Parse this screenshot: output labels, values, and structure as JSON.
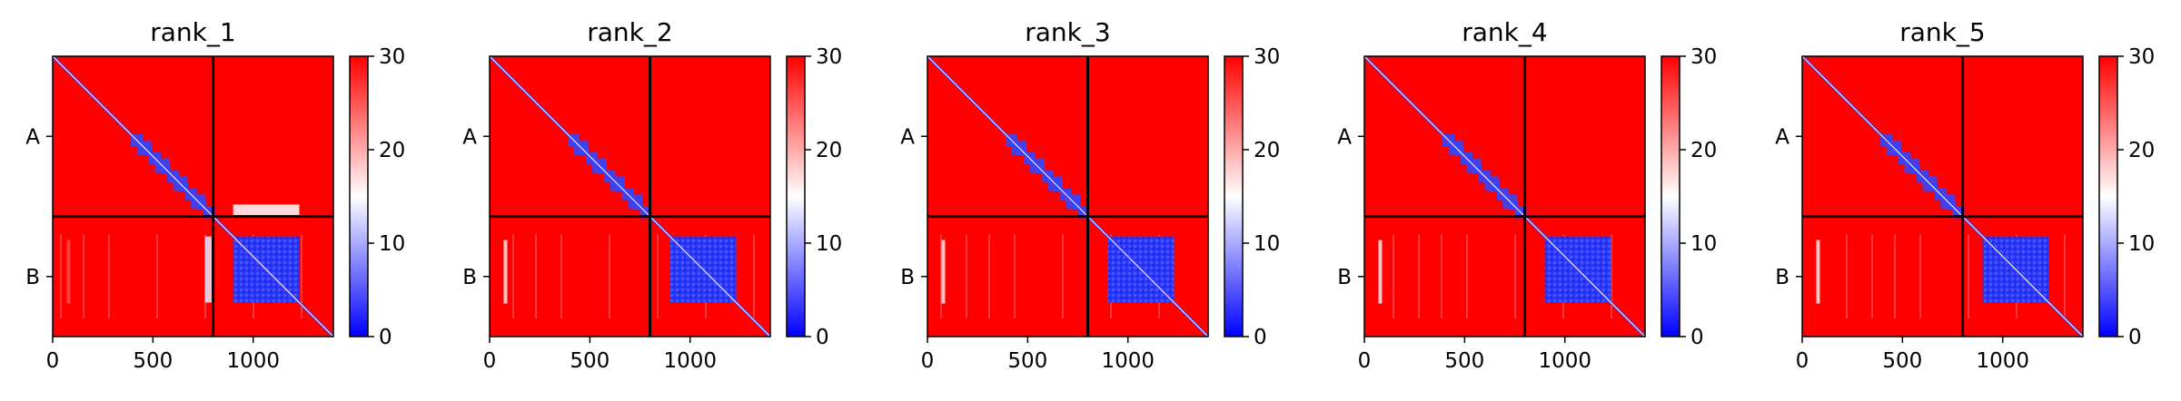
{
  "chart_data": {
    "type": "heatmap",
    "description_kind": "predicted aligned error matrices",
    "colorscale": {
      "low": "#0000ff",
      "mid": "#ffffff",
      "high": "#ff0000",
      "range": [
        0,
        30
      ],
      "ticks": [
        0,
        10,
        20,
        30
      ]
    },
    "x_ticks": [
      0,
      500,
      1000
    ],
    "xlim": [
      0,
      1400
    ],
    "chain_boundary": 800,
    "chain_labels": [
      "A",
      "B"
    ],
    "panels": [
      {
        "title": "rank_1",
        "x_tick_labels": [
          "0",
          "500",
          "1000"
        ],
        "colorbar_tick_labels": [
          "0",
          "10",
          "20",
          "30"
        ]
      },
      {
        "title": "rank_2",
        "x_tick_labels": [
          "0",
          "500",
          "1000"
        ],
        "colorbar_tick_labels": [
          "0",
          "10",
          "20",
          "30"
        ]
      },
      {
        "title": "rank_3",
        "x_tick_labels": [
          "0",
          "500",
          "1000"
        ],
        "colorbar_tick_labels": [
          "0",
          "10",
          "20",
          "30"
        ]
      },
      {
        "title": "rank_4",
        "x_tick_labels": [
          "0",
          "500",
          "1000"
        ],
        "colorbar_tick_labels": [
          "0",
          "10",
          "20",
          "30"
        ]
      },
      {
        "title": "rank_5",
        "x_tick_labels": [
          "0",
          "500",
          "1000"
        ],
        "colorbar_tick_labels": [
          "0",
          "10",
          "20",
          "30"
        ]
      }
    ]
  }
}
